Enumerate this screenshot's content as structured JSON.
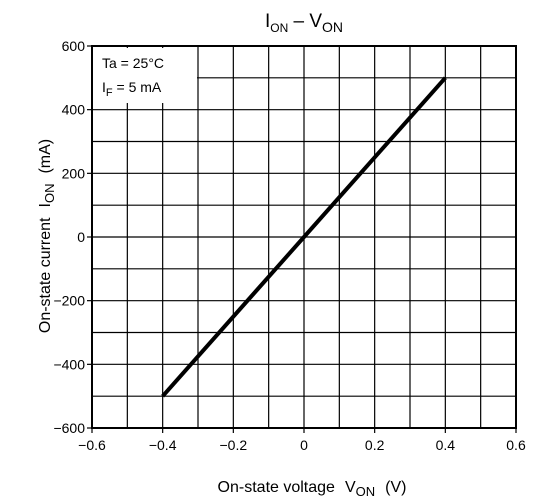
{
  "chart_data": {
    "type": "line",
    "title": "I_ON – V_ON",
    "title_parts": {
      "i": "I",
      "i_sub": "ON",
      "dash": " – ",
      "v": "V",
      "v_sub": "ON"
    },
    "xlabel": "On-state voltage  V_ON  (V)",
    "xlabel_parts": {
      "main": "On-state voltage",
      "sym": "V",
      "sym_sub": "ON",
      "unit": "(V)"
    },
    "ylabel": "On-state current  I_ON  (mA)",
    "ylabel_parts": {
      "main": "On-state current",
      "sym": "I",
      "sym_sub": "ON",
      "unit": "(mA)"
    },
    "xlim": [
      -0.6,
      0.6
    ],
    "ylim": [
      -600,
      600
    ],
    "x_ticks": [
      -0.6,
      -0.4,
      -0.2,
      0,
      0.2,
      0.4,
      0.6
    ],
    "x_tick_labels": [
      "−0.6",
      "−0.4",
      "−0.2",
      "0",
      "0.2",
      "0.4",
      "0.6"
    ],
    "y_ticks": [
      -600,
      -400,
      -200,
      0,
      200,
      400,
      600
    ],
    "y_tick_labels": [
      "−600",
      "−400",
      "−200",
      "0",
      "200",
      "400",
      "600"
    ],
    "grid": true,
    "grid_minor_x": 0.1,
    "grid_minor_y": 100,
    "annotations": {
      "line1": "Ta = 25°C",
      "line2_main": "I",
      "line2_sub": "F",
      "line2_rest": " = 5 mA"
    },
    "series": [
      {
        "x": [
          -0.4,
          0,
          0.4
        ],
        "y": [
          -500,
          0,
          500
        ]
      }
    ]
  }
}
